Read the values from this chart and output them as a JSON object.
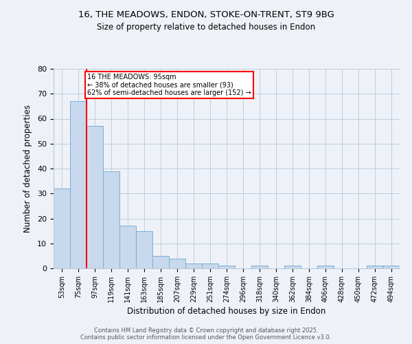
{
  "title_line1": "16, THE MEADOWS, ENDON, STOKE-ON-TRENT, ST9 9BG",
  "title_line2": "Size of property relative to detached houses in Endon",
  "xlabel": "Distribution of detached houses by size in Endon",
  "ylabel": "Number of detached properties",
  "categories": [
    "53sqm",
    "75sqm",
    "97sqm",
    "119sqm",
    "141sqm",
    "163sqm",
    "185sqm",
    "207sqm",
    "229sqm",
    "251sqm",
    "274sqm",
    "296sqm",
    "318sqm",
    "340sqm",
    "362sqm",
    "384sqm",
    "406sqm",
    "428sqm",
    "450sqm",
    "472sqm",
    "494sqm"
  ],
  "values": [
    32,
    67,
    57,
    39,
    17,
    15,
    5,
    4,
    2,
    2,
    1,
    0,
    1,
    0,
    1,
    0,
    1,
    0,
    0,
    1,
    1
  ],
  "bar_color": "#c8d9ed",
  "bar_edge_color": "#7aaed6",
  "vline_x": 1.5,
  "vline_color": "red",
  "annotation_text": "16 THE MEADOWS: 95sqm\n← 38% of detached houses are smaller (93)\n62% of semi-detached houses are larger (152) →",
  "annotation_box_color": "white",
  "annotation_box_edge_color": "red",
  "ylim": [
    0,
    80
  ],
  "yticks": [
    0,
    10,
    20,
    30,
    40,
    50,
    60,
    70,
    80
  ],
  "footer_line1": "Contains HM Land Registry data © Crown copyright and database right 2025.",
  "footer_line2": "Contains public sector information licensed under the Open Government Licence v3.0.",
  "background_color": "#eef2f8",
  "plot_background": "#eef2f8",
  "grid_color": "#b8c8d8"
}
